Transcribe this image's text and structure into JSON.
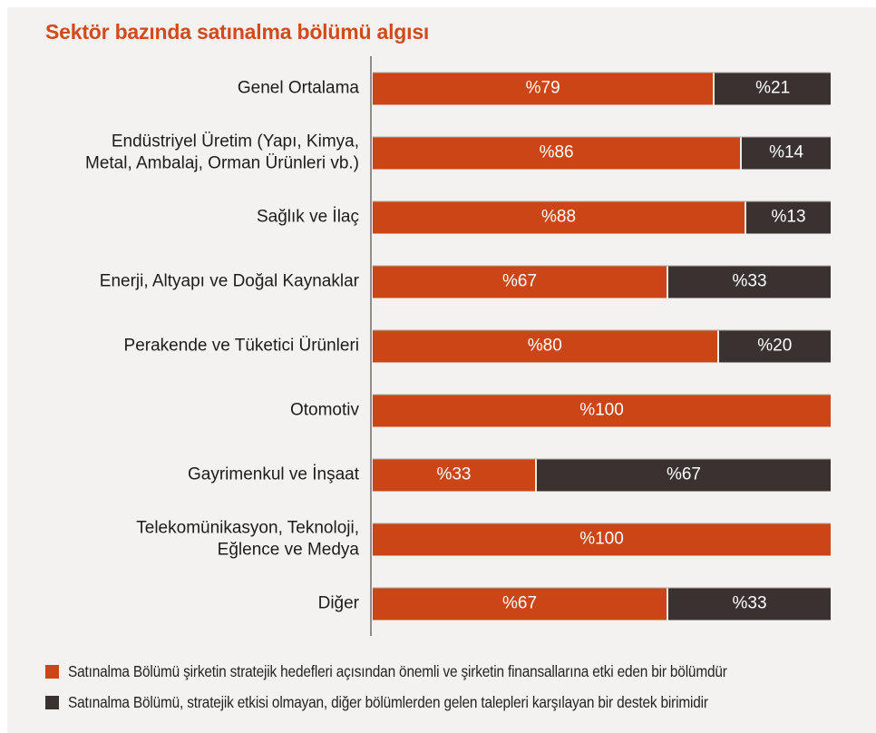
{
  "title": "Sektör bazında satınalma bölümü algısı",
  "colors": {
    "background_panel": "#F3F2F0",
    "page_background": "#FFFFFF",
    "title": "#D04A1C",
    "primary_bar": "#CC4517",
    "secondary_bar": "#3A3231",
    "axis_line": "#908D8B",
    "value_text": "#FFFFFF",
    "label_text": "#1C1C1C"
  },
  "chart_data": {
    "type": "bar",
    "orientation": "horizontal",
    "stacked": true,
    "value_prefix": "%",
    "xlim": [
      0,
      100
    ],
    "grid": false,
    "legend_position": "bottom",
    "title": "Sektör bazında satınalma bölümü algısı",
    "categories": [
      "Genel Ortalama",
      "Endüstriyel Üretim (Yapı, Kimya,\nMetal, Ambalaj, Orman Ürünleri vb.)",
      "Sağlık ve İlaç",
      "Enerji, Altyapı ve Doğal Kaynaklar",
      "Perakende ve Tüketici Ürünleri",
      "Otomotiv",
      "Gayrimenkul ve İnşaat",
      "Telekomünikasyon, Teknoloji,\nEğlence ve Medya",
      "Diğer"
    ],
    "series": [
      {
        "name": "Satınalma Bölümü şirketin stratejik hedefleri açısından önemli ve şirketin finansallarına etki eden bir bölümdür",
        "color": "#CC4517",
        "values": [
          79,
          86,
          88,
          67,
          80,
          100,
          33,
          100,
          67
        ]
      },
      {
        "name": "Satınalma Bölümü, stratejik etkisi olmayan, diğer bölümlerden gelen talepleri karşılayan bir destek birimidir",
        "color": "#3A3231",
        "values": [
          21,
          14,
          13,
          33,
          20,
          0,
          67,
          0,
          33
        ]
      }
    ]
  }
}
